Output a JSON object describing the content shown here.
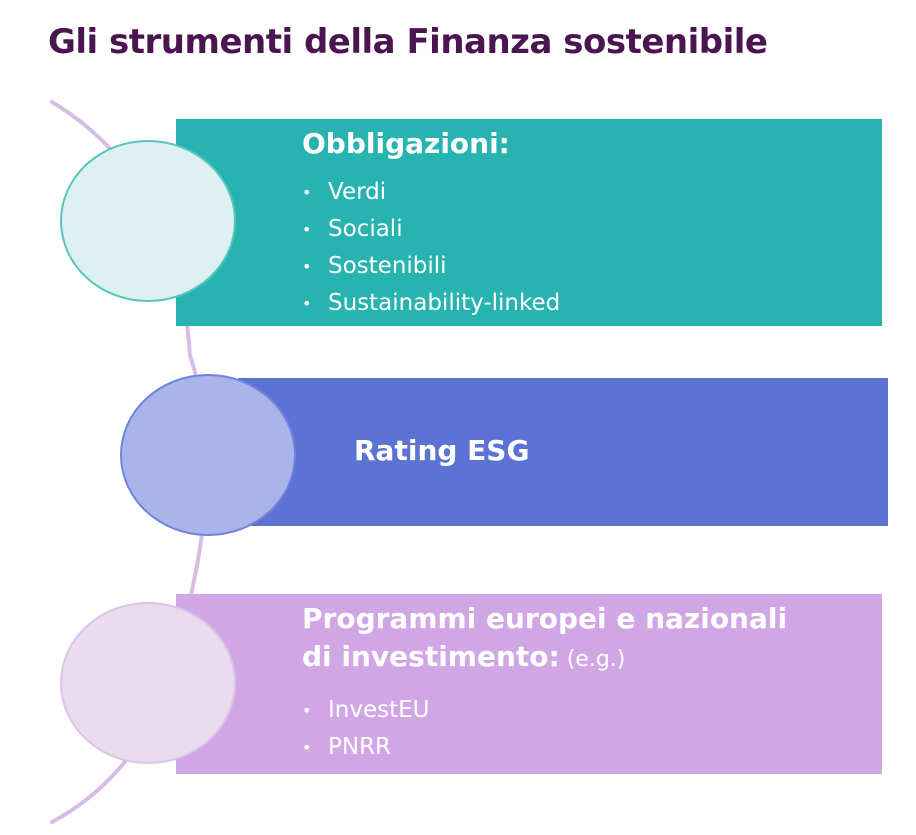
{
  "title": "Gli strumenti della Finanza sostenibile",
  "colors": {
    "title": "#4a1650",
    "arc": "#d7bde6",
    "panel_1": "#27b4b0",
    "panel_2": "#5d73d4",
    "panel_3": "#d0a7e4",
    "circle_1_fill": "#ddf1f2",
    "circle_1_border": "#5bc3bf",
    "circle_2_fill": "#a9b5ea",
    "circle_2_border": "#7083d8",
    "circle_3_fill": "#e9dcee",
    "circle_3_border": "#dcc4e8"
  },
  "items": [
    {
      "heading": "Obbligazioni:",
      "heading_suffix": "",
      "bullets": [
        "Verdi",
        "Sociali",
        "Sostenibili",
        "Sustainability-linked"
      ]
    },
    {
      "heading": "Rating ESG",
      "heading_suffix": "",
      "bullets": []
    },
    {
      "heading_line1": "Programmi europei e nazionali",
      "heading_line2": "di investimento:",
      "heading_suffix": " (e.g.)",
      "bullets": [
        "InvestEU",
        "PNRR"
      ]
    }
  ],
  "bullet_glyph": "•"
}
